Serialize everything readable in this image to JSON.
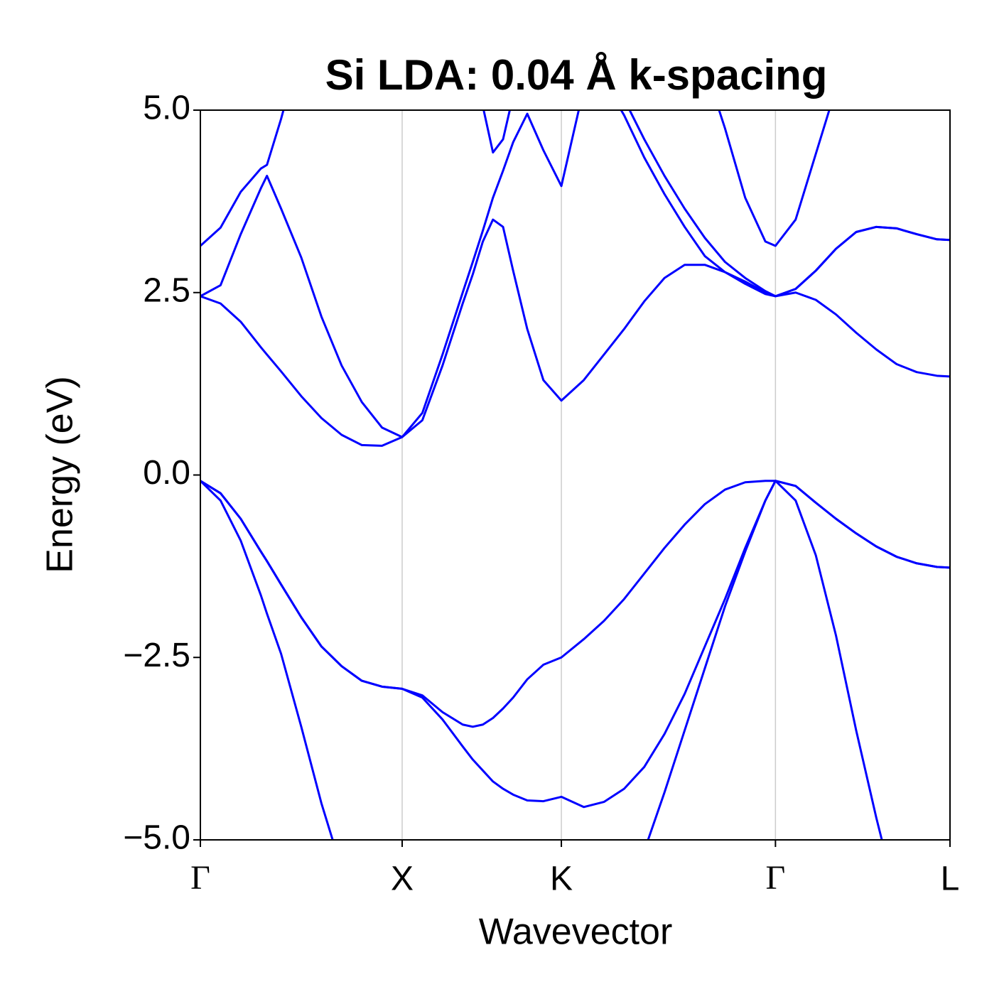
{
  "chart_data": {
    "type": "line",
    "title": "Si LDA: 0.04 Å k-spacing",
    "xlabel": "Wavevector",
    "ylabel": "Energy (eV)",
    "xlim": [
      0,
      3.715
    ],
    "ylim": [
      -5,
      5
    ],
    "xticks": [
      {
        "value": 0,
        "label": "Γ"
      },
      {
        "value": 1.0,
        "label": "X"
      },
      {
        "value": 1.789,
        "label": "K"
      },
      {
        "value": 2.85,
        "label": "Γ"
      },
      {
        "value": 3.715,
        "label": "L"
      }
    ],
    "yticks": [
      {
        "value": 5,
        "label": "5.0"
      },
      {
        "value": 2.5,
        "label": "2.5"
      },
      {
        "value": 0,
        "label": "0.0"
      },
      {
        "value": -2.5,
        "label": "−2.5"
      },
      {
        "value": -5,
        "label": "−5.0"
      }
    ],
    "vgrid": true,
    "x": [
      0,
      0.1,
      0.2,
      0.3,
      0.33,
      0.4,
      0.5,
      0.6,
      0.7,
      0.8,
      0.9,
      1.0,
      1.1,
      1.2,
      1.3,
      1.35,
      1.4,
      1.45,
      1.5,
      1.55,
      1.62,
      1.7,
      1.789,
      1.9,
      2.0,
      2.1,
      2.2,
      2.3,
      2.4,
      2.5,
      2.6,
      2.7,
      2.8,
      2.85,
      2.95,
      3.05,
      3.15,
      3.25,
      3.35,
      3.45,
      3.55,
      3.65,
      3.715
    ],
    "series": [
      {
        "color": "#0000ff",
        "values": [
          -0.08,
          -0.35,
          -0.9,
          -1.65,
          -1.9,
          -2.45,
          -3.45,
          -4.5,
          -5.4,
          -6.2,
          null,
          null,
          null,
          null,
          null,
          null,
          null,
          null,
          null,
          null,
          null,
          null,
          null,
          null,
          null,
          -5.5,
          -5.15,
          -4.35,
          -3.5,
          -2.65,
          -1.8,
          -1.05,
          -0.35,
          -0.08,
          -0.35,
          -1.1,
          -2.2,
          -3.5,
          -4.7,
          -5.8,
          null,
          null,
          null
        ]
      },
      {
        "color": "#0000ff",
        "values": [
          -0.08,
          -0.25,
          -0.6,
          -1.05,
          -1.18,
          -1.5,
          -1.95,
          -2.35,
          -2.62,
          -2.82,
          -2.9,
          -2.93,
          -3.05,
          -3.35,
          -3.72,
          -3.9,
          -4.05,
          -4.2,
          -4.3,
          -4.38,
          -4.46,
          -4.47,
          -4.41,
          -4.55,
          -4.48,
          -4.3,
          -4.0,
          -3.55,
          -3.0,
          -2.35,
          -1.7,
          -1.0,
          -0.35,
          -0.08,
          -0.15,
          -0.38,
          -0.6,
          -0.8,
          -0.98,
          -1.12,
          -1.21,
          -1.26,
          -1.27
        ]
      },
      {
        "color": "#0000ff",
        "values": [
          -0.08,
          -0.25,
          -0.6,
          -1.05,
          -1.18,
          -1.5,
          -1.95,
          -2.35,
          -2.62,
          -2.82,
          -2.9,
          -2.93,
          -3.02,
          -3.25,
          -3.42,
          -3.45,
          -3.42,
          -3.33,
          -3.2,
          -3.05,
          -2.8,
          -2.6,
          -2.5,
          -2.25,
          -2.0,
          -1.7,
          -1.35,
          -1.0,
          -0.68,
          -0.4,
          -0.2,
          -0.1,
          -0.08,
          -0.08,
          -0.15,
          -0.38,
          -0.6,
          -0.8,
          -0.98,
          -1.12,
          -1.21,
          -1.26,
          -1.27
        ]
      },
      {
        "color": "#0000ff",
        "values": [
          2.45,
          2.35,
          2.1,
          1.75,
          1.65,
          1.42,
          1.08,
          0.78,
          0.55,
          0.41,
          0.4,
          0.52,
          0.75,
          1.5,
          2.35,
          2.75,
          3.2,
          3.5,
          3.4,
          2.8,
          2.0,
          1.3,
          1.02,
          1.3,
          1.65,
          2.0,
          2.38,
          2.7,
          2.88,
          2.88,
          2.78,
          2.62,
          2.48,
          2.45,
          2.5,
          2.4,
          2.2,
          1.95,
          1.72,
          1.52,
          1.41,
          1.36,
          1.35
        ]
      },
      {
        "color": "#0000ff",
        "values": [
          2.45,
          2.6,
          3.3,
          3.93,
          4.1,
          3.65,
          2.98,
          2.17,
          1.5,
          1.0,
          0.65,
          0.52,
          0.85,
          1.65,
          2.5,
          2.92,
          3.35,
          3.8,
          4.17,
          4.56,
          4.95,
          4.45,
          3.96,
          5.3,
          5.4,
          4.93,
          4.35,
          3.85,
          3.4,
          3.0,
          2.78,
          2.65,
          2.5,
          2.45,
          2.55,
          2.8,
          3.1,
          3.33,
          3.4,
          3.38,
          3.3,
          3.23,
          3.22
        ]
      },
      {
        "color": "#0000ff",
        "values": [
          3.14,
          3.39,
          3.88,
          4.2,
          4.25,
          4.88,
          5.9,
          null,
          null,
          null,
          null,
          null,
          null,
          null,
          null,
          5.4,
          5.05,
          4.42,
          4.6,
          5.2,
          null,
          null,
          null,
          null,
          5.6,
          5.15,
          4.6,
          4.1,
          3.65,
          3.25,
          2.92,
          2.7,
          2.52,
          2.45,
          2.55,
          2.8,
          3.1,
          3.33,
          3.4,
          3.38,
          3.3,
          3.23,
          3.22
        ]
      },
      {
        "color": "#0000ff",
        "values": [
          null,
          null,
          null,
          null,
          null,
          null,
          null,
          null,
          null,
          null,
          null,
          null,
          null,
          null,
          null,
          null,
          null,
          null,
          null,
          null,
          null,
          null,
          null,
          null,
          null,
          null,
          null,
          null,
          null,
          5.6,
          4.75,
          3.8,
          3.2,
          3.14,
          3.5,
          4.4,
          5.3,
          null,
          null,
          null,
          null,
          null,
          null
        ]
      }
    ]
  }
}
